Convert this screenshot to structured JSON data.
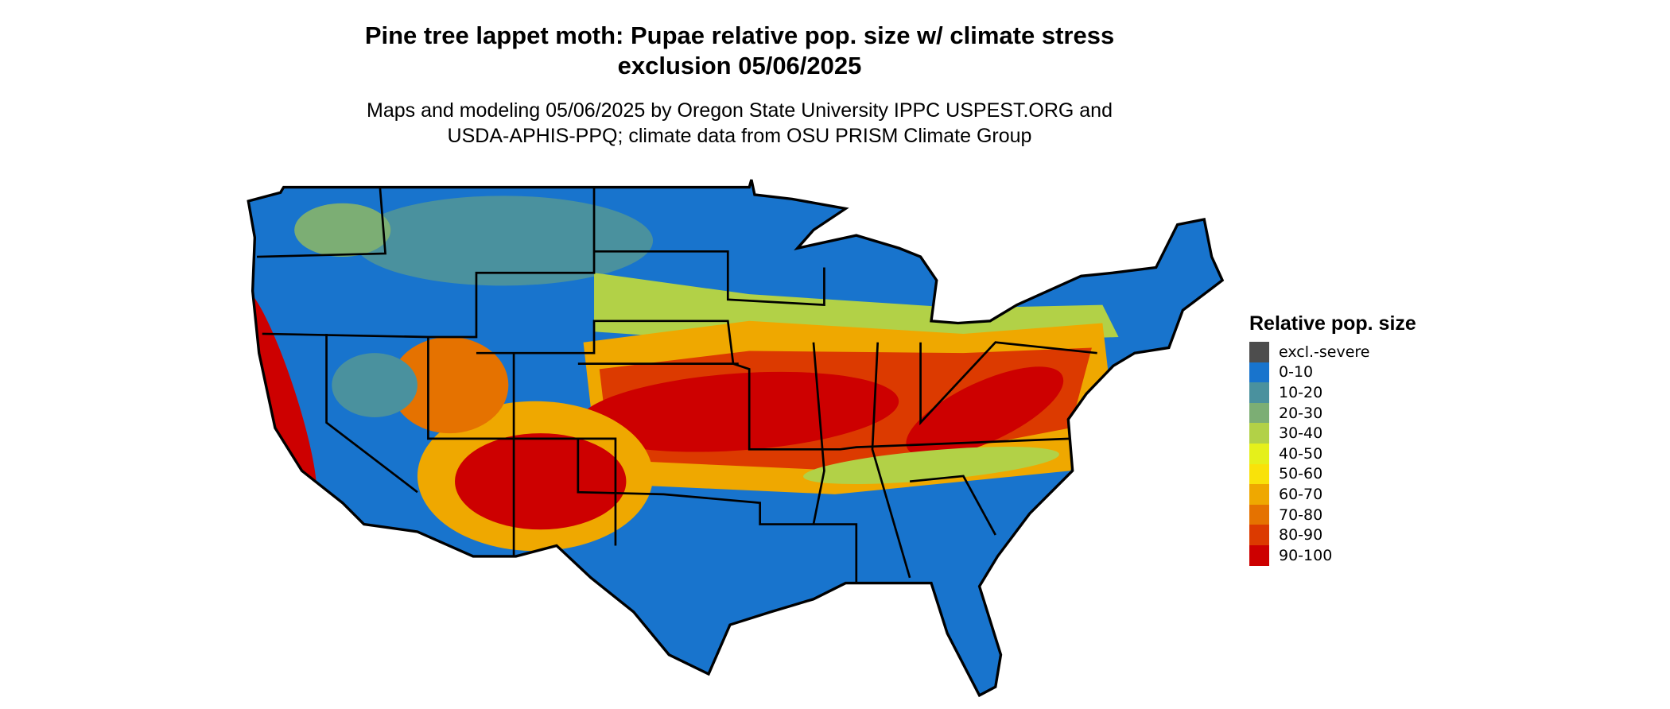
{
  "title": {
    "line1": "Pine tree lappet moth: Pupae relative pop. size w/ climate stress",
    "line2": "exclusion 05/06/2025"
  },
  "subtitle": {
    "line1": "Maps and modeling 05/06/2025 by Oregon State University IPPC USPEST.ORG and",
    "line2": "USDA-APHIS-PPQ; climate data from OSU PRISM Climate Group"
  },
  "legend": {
    "title": "Relative pop. size",
    "items": [
      {
        "label": "excl.-severe",
        "color": "#4d4d4d"
      },
      {
        "label": "0-10",
        "color": "#1874cd"
      },
      {
        "label": "10-20",
        "color": "#4a919e"
      },
      {
        "label": "20-30",
        "color": "#7cae74"
      },
      {
        "label": "30-40",
        "color": "#b2d147"
      },
      {
        "label": "40-50",
        "color": "#e5f01b"
      },
      {
        "label": "50-60",
        "color": "#f9e20a"
      },
      {
        "label": "60-70",
        "color": "#efa800"
      },
      {
        "label": "70-80",
        "color": "#e57200"
      },
      {
        "label": "80-90",
        "color": "#dc3a00"
      },
      {
        "label": "90-100",
        "color": "#cd0000"
      }
    ]
  }
}
